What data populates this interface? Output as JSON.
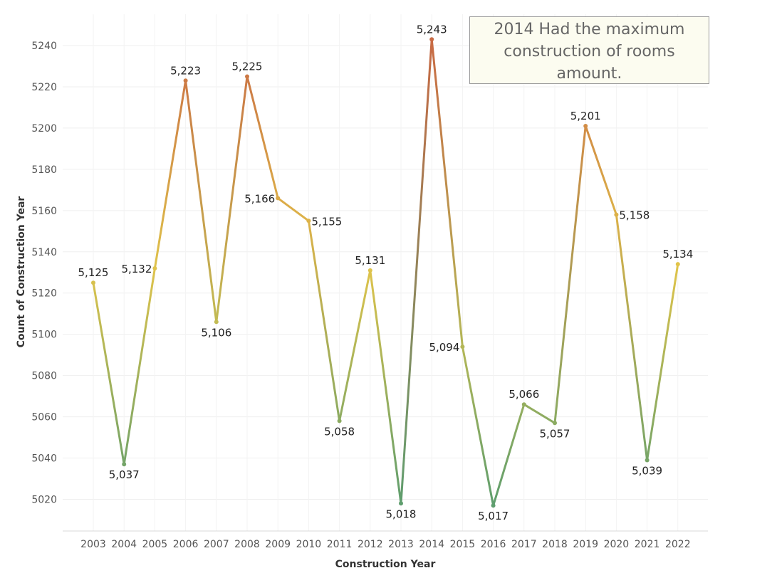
{
  "chart_data": {
    "type": "line",
    "xlabel": "Construction Year",
    "ylabel": "Count of Construction Year",
    "categories": [
      "2003",
      "2004",
      "2005",
      "2006",
      "2007",
      "2008",
      "2009",
      "2010",
      "2011",
      "2012",
      "2013",
      "2014",
      "2015",
      "2016",
      "2017",
      "2018",
      "2019",
      "2020",
      "2021",
      "2022"
    ],
    "values": [
      5125,
      5037,
      5132,
      5223,
      5106,
      5225,
      5166,
      5155,
      5058,
      5131,
      5018,
      5243,
      5094,
      5017,
      5066,
      5057,
      5201,
      5158,
      5039,
      5134
    ],
    "data_labels": [
      "5,125",
      "5,037",
      "5,132",
      "5,223",
      "5,106",
      "5,225",
      "5,166",
      "5,155",
      "5,058",
      "5,131",
      "5,018",
      "5,243",
      "5,094",
      "5,017",
      "5,066",
      "5,057",
      "5,201",
      "5,158",
      "5,039",
      "5,134"
    ],
    "ylim": [
      5013,
      5250
    ],
    "yticks": [
      5020,
      5040,
      5060,
      5080,
      5100,
      5120,
      5140,
      5160,
      5180,
      5200,
      5220,
      5240
    ],
    "ytick_labels": [
      "5020",
      "5040",
      "5060",
      "5080",
      "5100",
      "5120",
      "5140",
      "5160",
      "5180",
      "5200",
      "5220",
      "5240"
    ],
    "grid": true,
    "color_scale": {
      "low": "#5e9e6e",
      "mid": "#e2c44a",
      "high": "#c86a44"
    },
    "annotation": "2014 Had the maximum construction of rooms amount."
  }
}
